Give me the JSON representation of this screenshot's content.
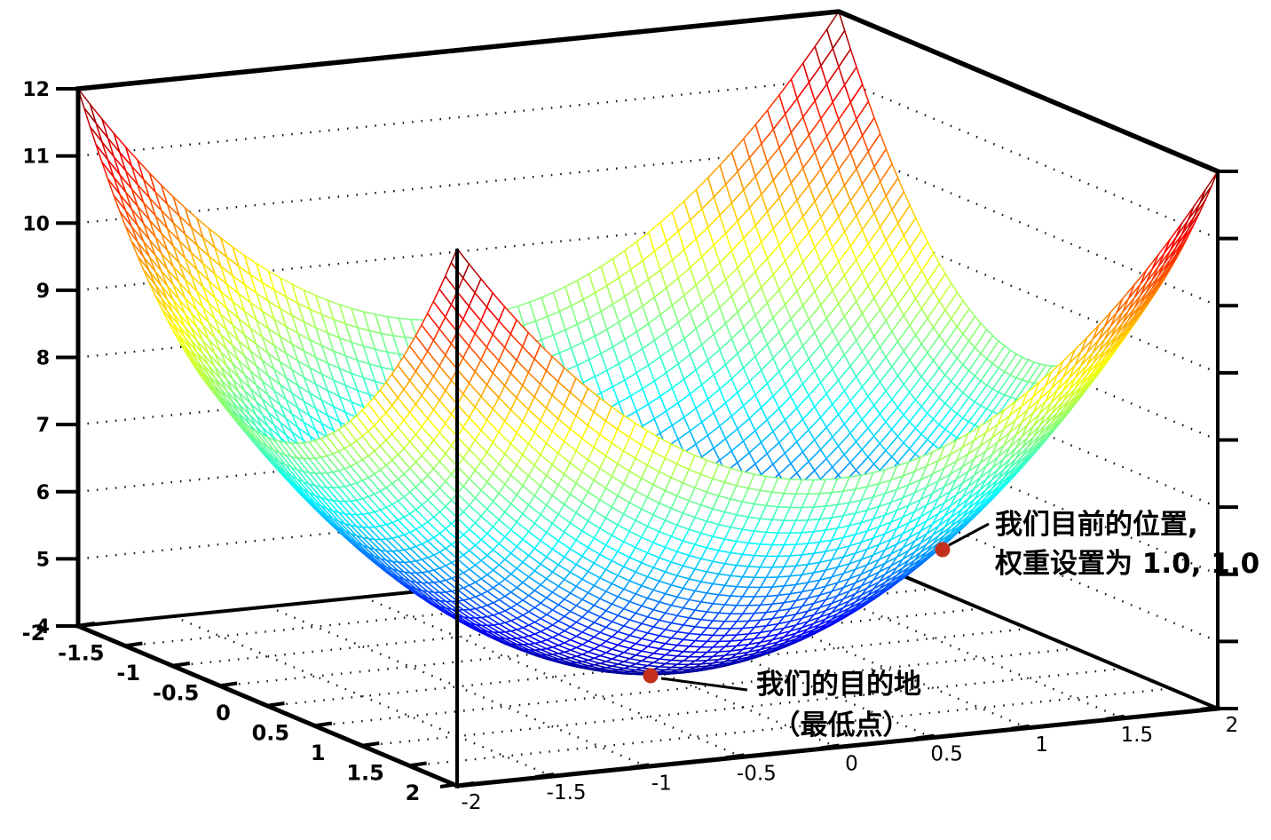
{
  "figure": {
    "background": "#ffffff",
    "description": "3D wireframe surface plot of a bowl-shaped error surface"
  },
  "colors": {
    "axis": "#000000",
    "grid_dots": "#1a1a1a",
    "mesh_face": "#ffffff",
    "annotation_text": "#000000",
    "marker": "#c2301c"
  },
  "chart_data": {
    "type": "surface-wireframe-3d",
    "title": "",
    "surface": {
      "formula": "z = x^2 + y^2 + 4",
      "coeff_x2": 1,
      "coeff_y2": 1,
      "constant": 4,
      "grid_min": -2,
      "grid_max": 2,
      "grid_step": 0.0625
    },
    "colormap": "jet",
    "color_range": [
      4,
      12
    ],
    "grid_on": true,
    "axes": {
      "z": {
        "range": [
          4,
          12
        ],
        "ticks": [
          4,
          5,
          6,
          7,
          8,
          9,
          10,
          11,
          12
        ],
        "tick_labels": [
          "4",
          "5",
          "6",
          "7",
          "8",
          "9",
          "10",
          "11",
          "12"
        ]
      },
      "left_bottom": {
        "range": [
          -2,
          2
        ],
        "ticks": [
          -2,
          -1.5,
          -1,
          -0.5,
          0,
          0.5,
          1,
          1.5,
          2
        ],
        "tick_labels": [
          "-2",
          "-1.5",
          "-1",
          "-0.5",
          "0",
          "0.5",
          "1",
          "1.5",
          "2"
        ]
      },
      "right_bottom": {
        "range": [
          -2,
          2
        ],
        "ticks": [
          -2,
          -1.5,
          -1,
          -0.5,
          0,
          0.5,
          1,
          1.5,
          2
        ],
        "tick_labels": [
          "-2",
          "-1.5",
          "-1",
          "-0.5",
          "0",
          "0.5",
          "1",
          "1.5",
          "2"
        ]
      }
    },
    "grid": {
      "wall_z_lines": [
        5,
        6,
        7,
        8,
        9,
        10,
        11
      ],
      "floor_lines": [
        -1.5,
        -1,
        -0.5,
        0,
        0.5,
        1,
        1.5
      ]
    },
    "annotations": [
      {
        "name": "current-position",
        "x": 1,
        "y": 1,
        "z": 6,
        "lines": [
          "我们目前的位置,",
          "权重设置为 1.0, 1.0"
        ],
        "marker_color": "#c2301c"
      },
      {
        "name": "destination",
        "x": 0,
        "y": 0,
        "z": 4,
        "lines": [
          "我们的目的地",
          "（最低点）"
        ],
        "marker_color": "#c2301c"
      }
    ]
  }
}
